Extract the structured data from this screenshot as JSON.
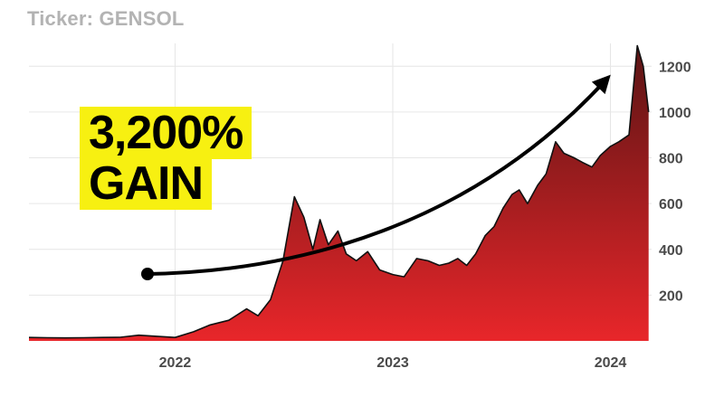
{
  "header": {
    "ticker_label": "Ticker: GENSOL"
  },
  "annotation": {
    "line1": "3,200%",
    "line2": "GAIN"
  },
  "colors": {
    "area_top": "#5a1414",
    "area_bottom": "#e8262a",
    "highlight": "#f7f011",
    "arrow": "#000000",
    "grid": "#e6e6e6"
  },
  "chart_data": {
    "type": "area",
    "title": "",
    "xlabel": "",
    "ylabel": "",
    "y_axis_side": "right",
    "ylim": [
      0,
      1300
    ],
    "xlim": [
      "2021-05",
      "2024-03"
    ],
    "yticks": [
      200,
      400,
      600,
      800,
      1000,
      1200
    ],
    "xticks": [
      {
        "label": "2022",
        "date": "2022-01"
      },
      {
        "label": "2023",
        "date": "2023-01"
      },
      {
        "label": "2024",
        "date": "2024-01"
      }
    ],
    "grid": true,
    "series": [
      {
        "x": [
          "2021-05-01",
          "2021-06-01",
          "2021-07-01",
          "2021-08-01",
          "2021-09-01",
          "2021-10-01",
          "2021-11-01",
          "2021-12-01",
          "2022-01-01",
          "2022-02-01",
          "2022-03-01",
          "2022-04-01",
          "2022-05-01",
          "2022-05-20",
          "2022-06-10",
          "2022-07-01",
          "2022-07-20",
          "2022-08-05",
          "2022-08-20",
          "2022-09-01",
          "2022-09-15",
          "2022-10-01",
          "2022-10-15",
          "2022-11-01",
          "2022-11-20",
          "2022-12-10",
          "2023-01-01",
          "2023-01-20",
          "2023-02-10",
          "2023-03-01",
          "2023-03-20",
          "2023-04-05",
          "2023-04-20",
          "2023-05-05",
          "2023-05-20",
          "2023-06-05",
          "2023-06-20",
          "2023-07-05",
          "2023-07-20",
          "2023-08-01",
          "2023-08-15",
          "2023-09-01",
          "2023-09-15",
          "2023-10-01",
          "2023-10-15",
          "2023-11-01",
          "2023-11-15",
          "2023-12-01",
          "2023-12-15",
          "2024-01-01",
          "2024-01-15",
          "2024-02-01",
          "2024-02-15",
          "2024-02-25",
          "2024-03-05"
        ],
        "values": [
          15,
          14,
          13,
          14,
          15,
          16,
          25,
          20,
          15,
          40,
          70,
          90,
          140,
          110,
          180,
          350,
          630,
          540,
          400,
          530,
          420,
          480,
          380,
          350,
          390,
          310,
          290,
          280,
          360,
          350,
          330,
          340,
          360,
          330,
          380,
          460,
          500,
          580,
          640,
          660,
          600,
          680,
          730,
          870,
          820,
          800,
          780,
          760,
          810,
          850,
          870,
          900,
          1290,
          1200,
          1000
        ]
      }
    ]
  }
}
